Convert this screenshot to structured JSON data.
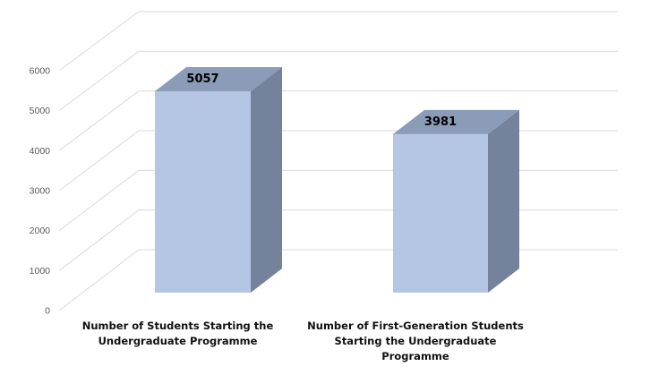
{
  "chart_data": {
    "type": "bar",
    "projection": "3d",
    "title": "",
    "xlabel": "",
    "ylabel": "",
    "categories": [
      "Number of Students Starting the Undergraduate Programme",
      "Number of First-Generation Students Starting the Undergraduate Programme"
    ],
    "category_label_lines": [
      [
        "Number of Students Starting the",
        "Undergraduate Programme"
      ],
      [
        "Number of First-Generation Students",
        "Starting the Undergraduate",
        "Programme"
      ]
    ],
    "values": [
      5057,
      3981
    ],
    "data_labels": [
      "5057",
      "3981"
    ],
    "yticks": [
      0,
      1000,
      2000,
      3000,
      4000,
      5000,
      6000
    ],
    "ylim": [
      0,
      6000
    ],
    "grid": true,
    "legend": "none"
  },
  "colors": {
    "background": "#FFFFFF",
    "bar_front": "#B5C6E5",
    "bar_top": "#8B9CB8",
    "bar_side": "#75829B",
    "gridline": "#D9D9D9",
    "tick_text": "#595959",
    "data_label_text": "#000000",
    "category_text": "#111111"
  }
}
